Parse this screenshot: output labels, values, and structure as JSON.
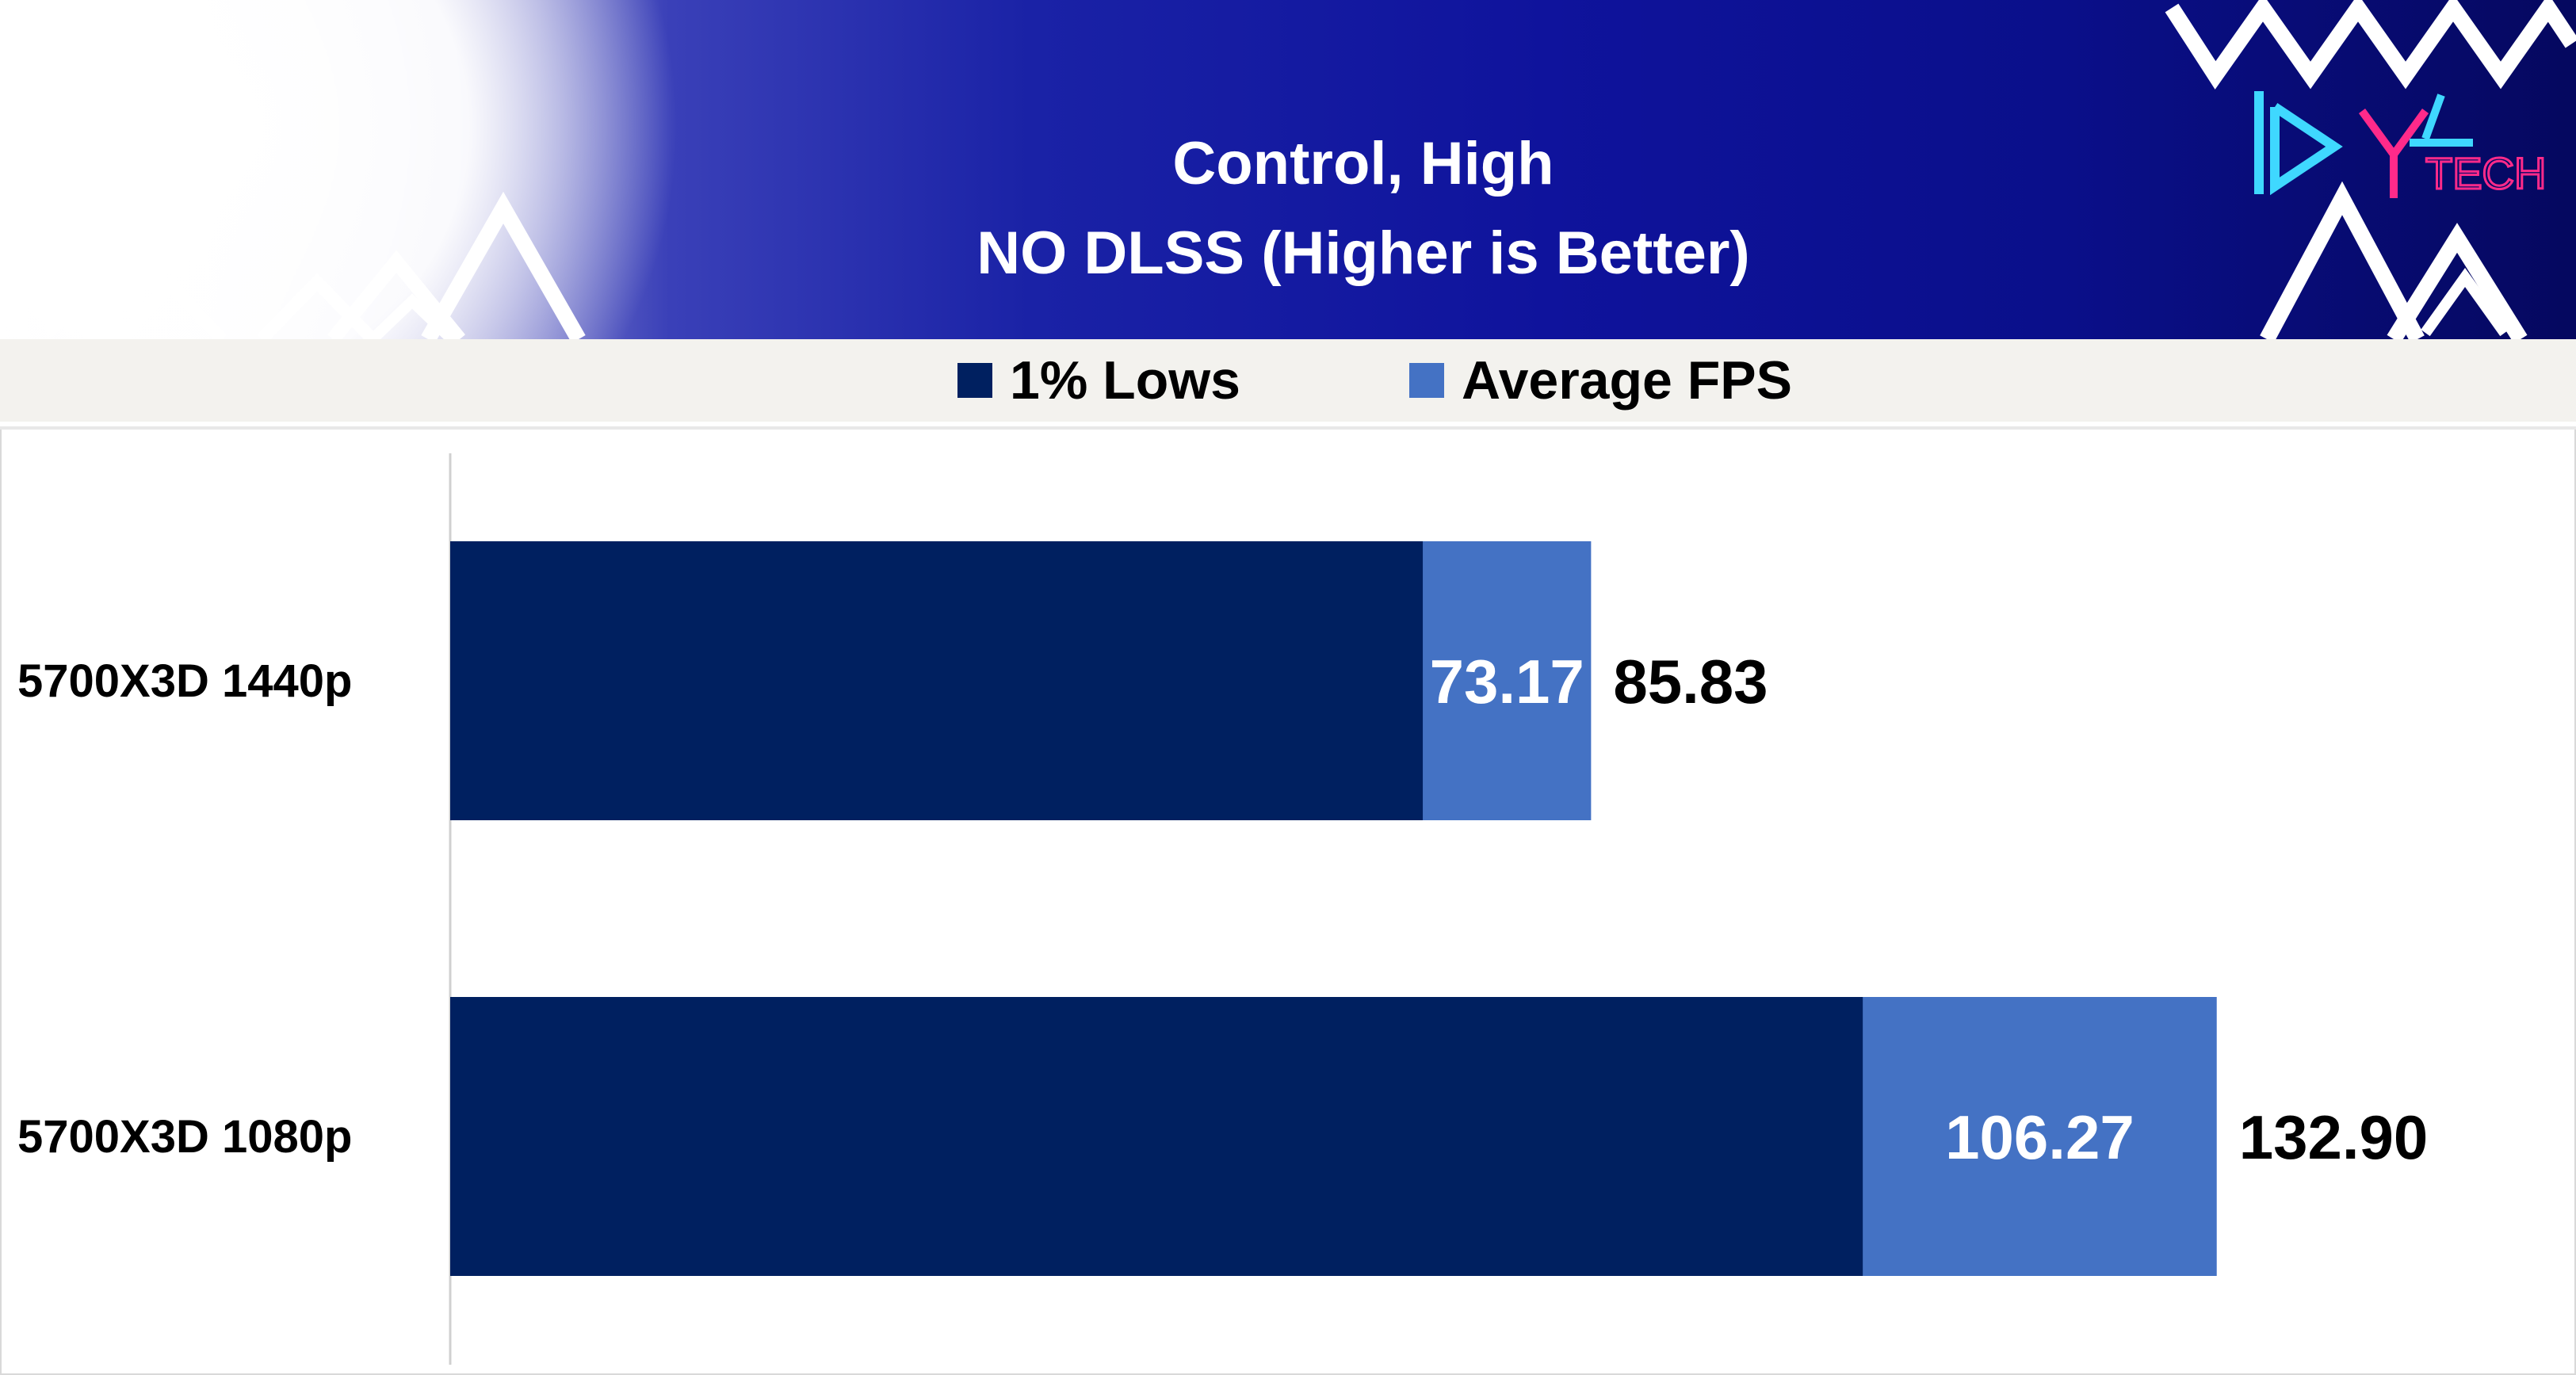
{
  "chart_data": {
    "type": "bar",
    "orientation": "horizontal",
    "title": "Control, High",
    "subtitle": "NO DLSS (Higher is Better)",
    "categories": [
      "5700X3D 1440p",
      "5700X3D 1080p"
    ],
    "series": [
      {
        "name": "1% Lows",
        "values": [
          73.17,
          106.27
        ],
        "labels": [
          "73.17",
          "106.27"
        ],
        "color": "#002060"
      },
      {
        "name": "Average FPS",
        "values": [
          85.83,
          132.9
        ],
        "labels": [
          "85.83",
          "132.90"
        ],
        "color": "#4472C4"
      }
    ],
    "xlim": [
      0,
      145
    ],
    "grid": false,
    "legend": "top-center",
    "overlapping_bars": true
  },
  "logo": {
    "text": "TECH",
    "accent": "#ff2a8a",
    "primary": "#3fd8ff"
  }
}
